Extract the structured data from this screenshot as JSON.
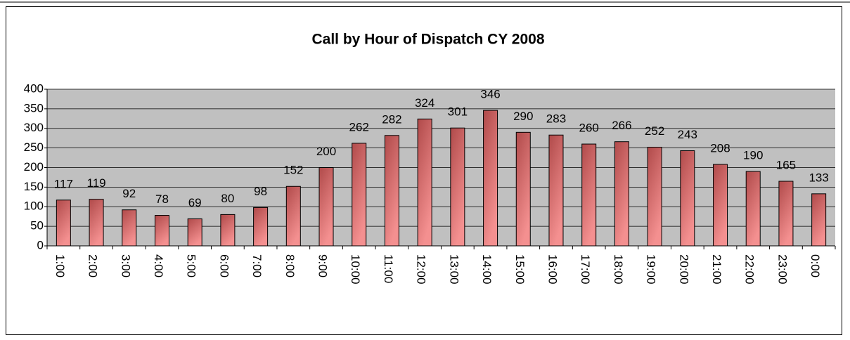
{
  "chart_data": {
    "type": "bar",
    "title": "Call by Hour of Dispatch CY 2008",
    "categories": [
      "1:00",
      "2:00",
      "3:00",
      "4:00",
      "5:00",
      "6:00",
      "7:00",
      "8:00",
      "9:00",
      "10:00",
      "11:00",
      "12:00",
      "13:00",
      "14:00",
      "15:00",
      "16:00",
      "17:00",
      "18:00",
      "19:00",
      "20:00",
      "21:00",
      "22:00",
      "23:00",
      "0:00"
    ],
    "values": [
      117,
      119,
      92,
      78,
      69,
      80,
      98,
      152,
      200,
      262,
      282,
      324,
      301,
      346,
      290,
      283,
      260,
      266,
      252,
      243,
      208,
      190,
      165,
      133
    ],
    "color": "#b04a4a",
    "ylim": [
      0,
      400
    ],
    "yticks": [
      0,
      50,
      100,
      150,
      200,
      250,
      300,
      350,
      400
    ],
    "grid": true
  }
}
